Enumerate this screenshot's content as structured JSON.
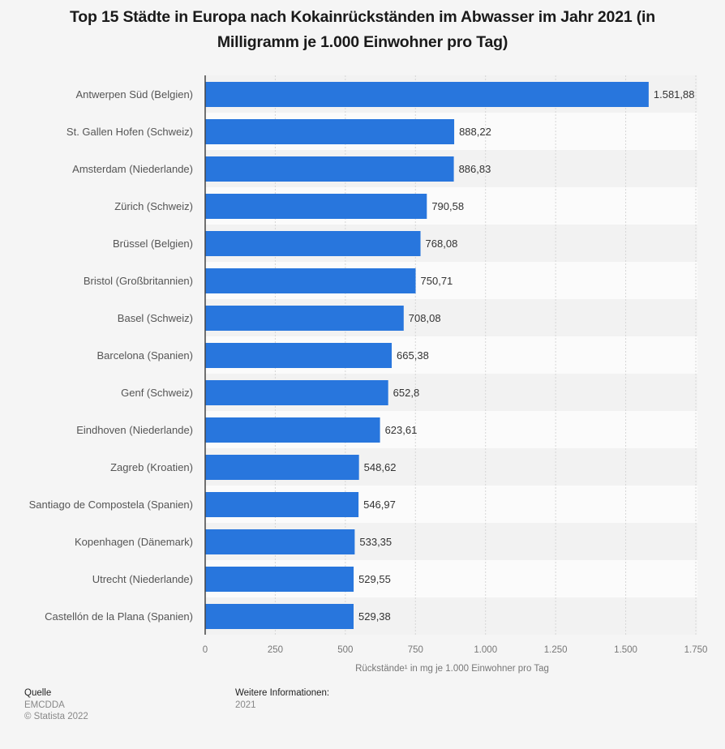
{
  "chart_data": {
    "type": "bar",
    "orientation": "horizontal",
    "title": "Top 15 Städte in Europa nach Kokainrückständen im Abwasser im Jahr 2021 (in Milligramm je 1.000 Einwohner pro Tag)",
    "categories": [
      "Antwerpen Süd (Belgien)",
      "St. Gallen Hofen (Schweiz)",
      "Amsterdam (Niederlande)",
      "Zürich (Schweiz)",
      "Brüssel (Belgien)",
      "Bristol (Großbritannien)",
      "Basel (Schweiz)",
      "Barcelona (Spanien)",
      "Genf (Schweiz)",
      "Eindhoven (Niederlande)",
      "Zagreb (Kroatien)",
      "Santiago de Compostela (Spanien)",
      "Kopenhagen (Dänemark)",
      "Utrecht (Niederlande)",
      "Castellón de la Plana (Spanien)"
    ],
    "values": [
      1581.88,
      888.22,
      886.83,
      790.58,
      768.08,
      750.71,
      708.08,
      665.38,
      652.8,
      623.61,
      548.62,
      546.97,
      533.35,
      529.55,
      529.38
    ],
    "value_labels": [
      "1.581,88",
      "888,22",
      "886,83",
      "790,58",
      "768,08",
      "750,71",
      "708,08",
      "665,38",
      "652,8",
      "623,61",
      "548,62",
      "546,97",
      "533,35",
      "529,55",
      "529,38"
    ],
    "xlabel": "Rückstände¹ in mg je 1.000 Einwohner pro Tag",
    "ylabel": "",
    "xlim": [
      0,
      1750
    ],
    "x_ticks": [
      0,
      250,
      500,
      750,
      1000,
      1250,
      1500,
      1750
    ],
    "x_tick_labels": [
      "0",
      "250",
      "500",
      "750",
      "1.000",
      "1.250",
      "1.500",
      "1.750"
    ],
    "grid": "vertical-dashed",
    "legend": "none",
    "bar_color": "#2876dd"
  },
  "footer": {
    "source_heading": "Quelle",
    "source_name": "EMCDDA",
    "copyright": "© Statista 2022",
    "info_heading": "Weitere Informationen:",
    "info_text": "2021"
  }
}
